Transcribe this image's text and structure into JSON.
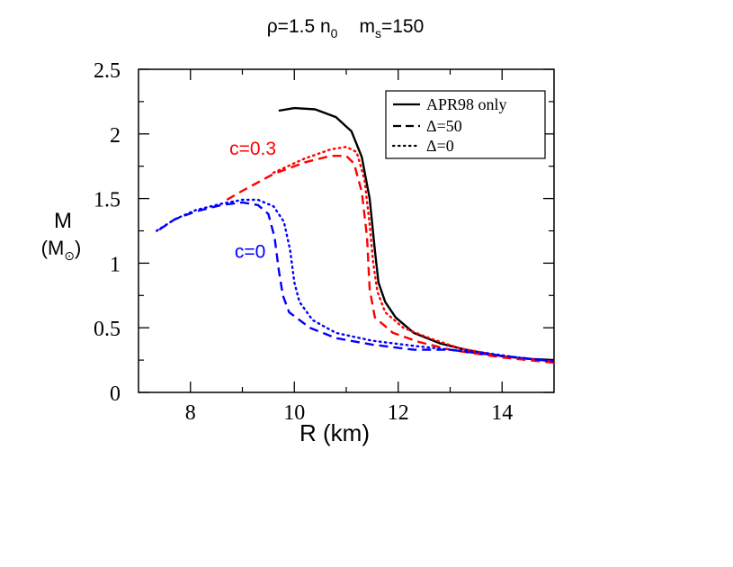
{
  "chart_data": {
    "type": "line",
    "title": {
      "rho_prefix": "ρ=1.5 n",
      "rho_sub": "0",
      "ms_prefix": "m",
      "ms_sub": "s",
      "ms_value": "=150"
    },
    "xlabel": "R (km)",
    "ylabel": {
      "line1": "M",
      "line2_open": "(M",
      "line2_sub": "⊙",
      "line2_close": ")"
    },
    "xlim": [
      7.0,
      15.0
    ],
    "ylim": [
      0,
      2.5
    ],
    "x_ticks": [
      8,
      10,
      12,
      14
    ],
    "x_tick_labels": [
      "8",
      "10",
      "12",
      "14"
    ],
    "y_ticks": [
      0,
      0.5,
      1,
      1.5,
      2,
      2.5
    ],
    "y_tick_labels": [
      "0",
      "0.5",
      "1",
      "1.5",
      "2",
      "2.5"
    ],
    "grid": false,
    "legend": {
      "position": "top-right",
      "entries": [
        {
          "label": "APR98 only",
          "style": "solid"
        },
        {
          "label": "Δ=50",
          "style": "dashed"
        },
        {
          "label": "Δ=0",
          "style": "dotted"
        }
      ]
    },
    "annotations": [
      {
        "text": "c=0.3",
        "x": 8.75,
        "y": 1.84,
        "color": "#ff0000"
      },
      {
        "text": "c=0",
        "x": 8.85,
        "y": 1.04,
        "color": "#0000ff"
      }
    ],
    "series": [
      {
        "name": "APR98 only",
        "color": "#000000",
        "style": "solid",
        "points": [
          [
            9.7,
            2.18
          ],
          [
            10.0,
            2.2
          ],
          [
            10.4,
            2.19
          ],
          [
            10.8,
            2.13
          ],
          [
            11.1,
            2.02
          ],
          [
            11.3,
            1.82
          ],
          [
            11.45,
            1.5
          ],
          [
            11.55,
            1.1
          ],
          [
            11.62,
            0.85
          ],
          [
            11.75,
            0.7
          ],
          [
            11.95,
            0.58
          ],
          [
            12.3,
            0.46
          ],
          [
            12.8,
            0.38
          ],
          [
            13.3,
            0.33
          ],
          [
            14.0,
            0.28
          ],
          [
            14.5,
            0.26
          ],
          [
            15.0,
            0.25
          ]
        ]
      },
      {
        "name": "c=0.3, Δ=50",
        "color": "#ff0000",
        "style": "dashed",
        "points": [
          [
            8.7,
            1.49
          ],
          [
            9.0,
            1.56
          ],
          [
            9.6,
            1.69
          ],
          [
            10.2,
            1.78
          ],
          [
            10.7,
            1.83
          ],
          [
            11.0,
            1.83
          ],
          [
            11.15,
            1.77
          ],
          [
            11.3,
            1.55
          ],
          [
            11.4,
            1.2
          ],
          [
            11.45,
            0.8
          ],
          [
            11.55,
            0.58
          ],
          [
            11.9,
            0.46
          ],
          [
            12.4,
            0.39
          ],
          [
            13.0,
            0.33
          ],
          [
            14.0,
            0.27
          ],
          [
            15.0,
            0.23
          ]
        ]
      },
      {
        "name": "c=0.3, Δ=0",
        "color": "#ff0000",
        "style": "dotted",
        "points": [
          [
            9.6,
            1.7
          ],
          [
            10.2,
            1.81
          ],
          [
            10.7,
            1.88
          ],
          [
            11.0,
            1.9
          ],
          [
            11.2,
            1.86
          ],
          [
            11.35,
            1.65
          ],
          [
            11.45,
            1.3
          ],
          [
            11.52,
            1.0
          ],
          [
            11.6,
            0.78
          ],
          [
            11.75,
            0.62
          ],
          [
            12.1,
            0.5
          ],
          [
            12.6,
            0.42
          ],
          [
            13.2,
            0.34
          ],
          [
            14.0,
            0.28
          ],
          [
            15.0,
            0.24
          ]
        ]
      },
      {
        "name": "c=0, Δ=50",
        "color": "#0000ff",
        "style": "dashed",
        "points": [
          [
            7.4,
            1.26
          ],
          [
            7.7,
            1.34
          ],
          [
            8.1,
            1.4
          ],
          [
            8.6,
            1.45
          ],
          [
            9.0,
            1.47
          ],
          [
            9.3,
            1.45
          ],
          [
            9.5,
            1.38
          ],
          [
            9.62,
            1.2
          ],
          [
            9.7,
            0.95
          ],
          [
            9.78,
            0.75
          ],
          [
            9.9,
            0.62
          ],
          [
            10.3,
            0.5
          ],
          [
            10.8,
            0.42
          ],
          [
            11.5,
            0.37
          ],
          [
            12.3,
            0.33
          ],
          [
            13.0,
            0.33
          ],
          [
            13.6,
            0.3
          ],
          [
            14.3,
            0.27
          ],
          [
            15.0,
            0.24
          ]
        ]
      },
      {
        "name": "c=0, Δ=0",
        "color": "#0000ff",
        "style": "dotted",
        "points": [
          [
            7.35,
            1.25
          ],
          [
            7.7,
            1.34
          ],
          [
            8.1,
            1.41
          ],
          [
            8.6,
            1.46
          ],
          [
            9.0,
            1.49
          ],
          [
            9.3,
            1.49
          ],
          [
            9.6,
            1.44
          ],
          [
            9.8,
            1.32
          ],
          [
            9.92,
            1.1
          ],
          [
            10.0,
            0.85
          ],
          [
            10.1,
            0.7
          ],
          [
            10.35,
            0.56
          ],
          [
            10.8,
            0.46
          ],
          [
            11.5,
            0.4
          ],
          [
            12.3,
            0.36
          ],
          [
            13.0,
            0.33
          ],
          [
            13.6,
            0.31
          ],
          [
            14.3,
            0.27
          ],
          [
            15.0,
            0.24
          ]
        ]
      }
    ]
  }
}
